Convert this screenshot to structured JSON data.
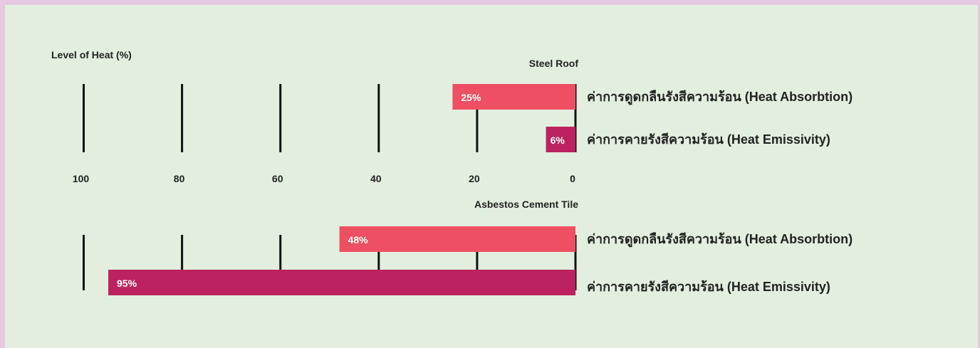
{
  "chart_data": {
    "type": "bar",
    "orientation": "horizontal-reversed",
    "axis_title": "Level of Heat (%)",
    "xticks": [
      100,
      80,
      60,
      40,
      20,
      0
    ],
    "xlim": [
      0,
      100
    ],
    "colors": {
      "absorption": "#ef4f63",
      "emissivity": "#bb225f",
      "background": "#e2efdf",
      "border": "#e6c9e0"
    },
    "groups": [
      {
        "title": "Steel Roof",
        "bars": [
          {
            "label": "ค่าการดูดกลืนรังสีความร้อน (Heat Absorbtion)",
            "value": 25,
            "value_label": "25%",
            "series": "absorption"
          },
          {
            "label": "ค่าการคายรังสีความร้อน (Heat Emissivity)",
            "value": 6,
            "value_label": "6%",
            "series": "emissivity"
          }
        ]
      },
      {
        "title": "Asbestos Cement Tile",
        "bars": [
          {
            "label": "ค่าการดูดกลืนรังสีความร้อน (Heat Absorbtion)",
            "value": 48,
            "value_label": "48%",
            "series": "absorption"
          },
          {
            "label": "ค่าการคายรังสีความร้อน (Heat Emissivity)",
            "value": 95,
            "value_label": "95%",
            "series": "emissivity"
          }
        ]
      }
    ]
  }
}
